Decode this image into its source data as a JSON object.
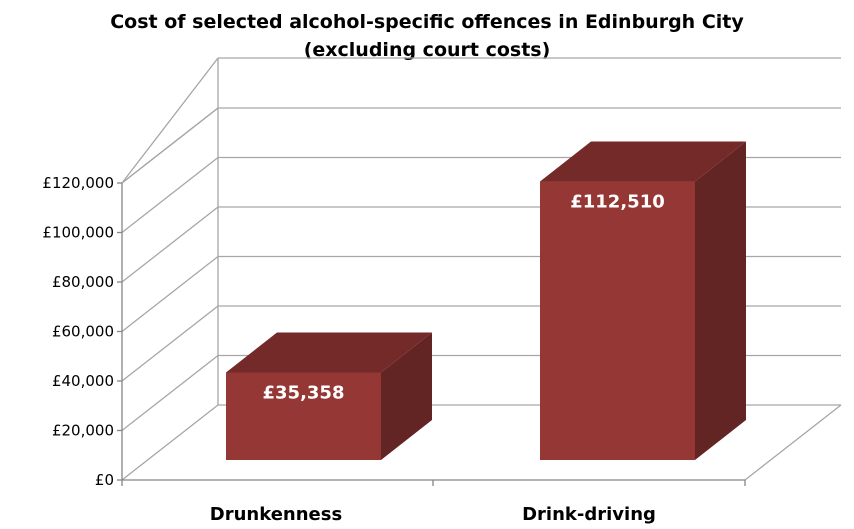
{
  "chart_data": {
    "type": "bar",
    "title_lines": [
      "Cost of selected alcohol-specific offences in Edinburgh City",
      "(excluding court costs)"
    ],
    "categories": [
      "Drunkenness",
      "Drink-driving"
    ],
    "values": [
      35358,
      112510
    ],
    "data_labels": [
      "£35,358",
      "£112,510"
    ],
    "y_ticks": [
      "£0",
      "£20,000",
      "£40,000",
      "£60,000",
      "£80,000",
      "£100,000",
      "£120,000"
    ],
    "ylim": [
      0,
      120000
    ],
    "grid": true,
    "legend": "none",
    "style": "3d-column"
  },
  "colors": {
    "bar_front": "#953735",
    "bar_top": "#732a28",
    "bar_side": "#632523",
    "grid": "#a6a6a6",
    "axis": "#868686"
  }
}
